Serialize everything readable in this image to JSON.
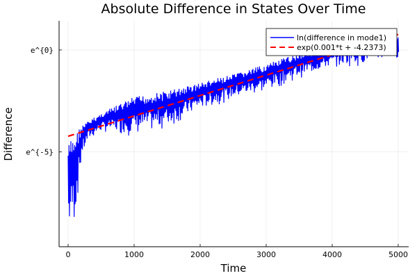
{
  "chart_data": {
    "type": "line",
    "title": "Absolute Difference in States Over Time",
    "xlabel": "Time",
    "ylabel": "Difference",
    "y_scale": "log (natural)",
    "xlim": [
      -137,
      5158
    ],
    "ylim_ln": [
      -9.66,
      1.43
    ],
    "x_ticks": [
      0,
      1000,
      2000,
      3000,
      4000,
      5000
    ],
    "x_tick_labels": [
      "0",
      "1000",
      "2000",
      "3000",
      "4000",
      "5000"
    ],
    "y_ticks_ln": [
      0,
      -5
    ],
    "y_tick_labels": [
      "e^{0}",
      "e^{-5}"
    ],
    "grid": true,
    "legend_position": "top-right",
    "series": [
      {
        "name": "ln(difference in mode1)",
        "color": "#0000ff",
        "style": "solid oscillating",
        "t": [
          0,
          100,
          200,
          300,
          500,
          1000,
          1500,
          2000,
          2500,
          3000,
          3500,
          4000,
          4500,
          5000
        ],
        "upper_ln": [
          -4.6,
          -4.1,
          -3.7,
          -3.5,
          -3.1,
          -2.3,
          -2.0,
          -1.6,
          -1.2,
          -0.7,
          -0.15,
          0.2,
          1.1,
          0.75
        ],
        "lower_ln": [
          -9.4,
          -8.6,
          -5.4,
          -4.5,
          -4.05,
          -4.25,
          -3.9,
          -3.0,
          -2.45,
          -2.1,
          -1.4,
          -0.85,
          -0.8,
          -0.4
        ]
      },
      {
        "name": "exp(0.001*t + -4.2373)",
        "color": "#ff0000",
        "style": "dashed",
        "slope": 0.001,
        "intercept": -4.2373,
        "t_range": [
          0,
          5000
        ]
      }
    ]
  }
}
